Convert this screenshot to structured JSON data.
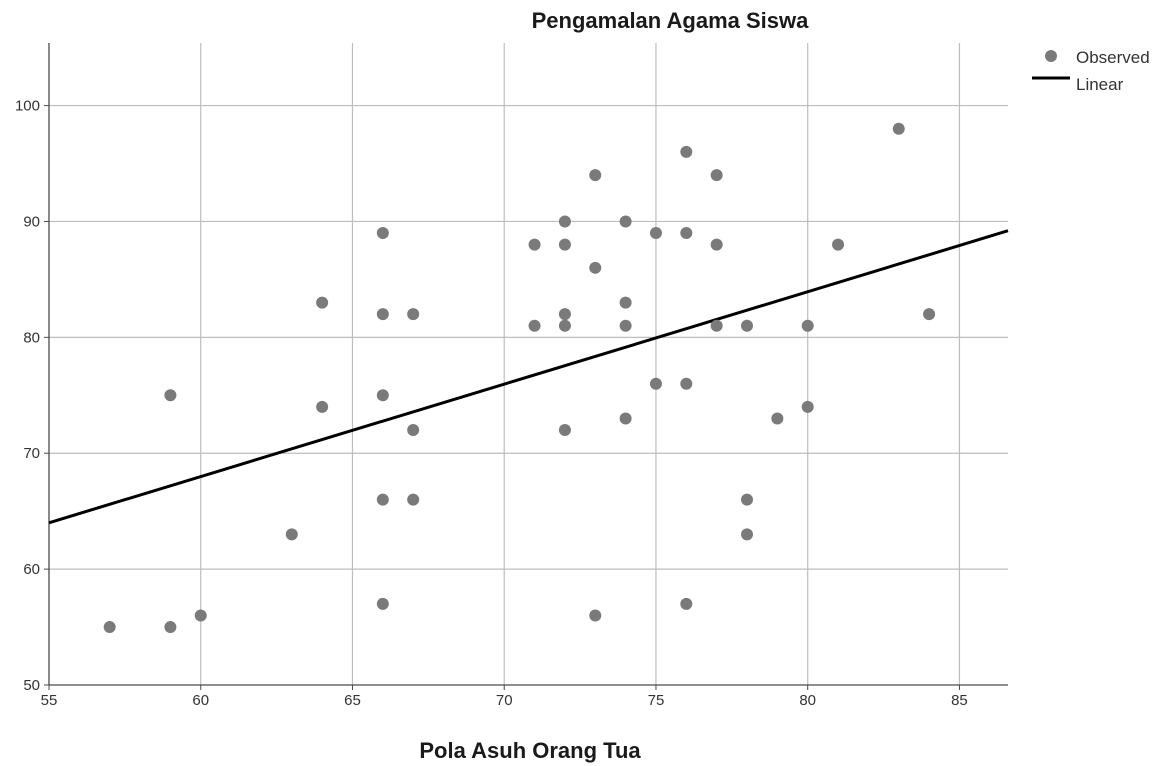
{
  "chart_data": {
    "type": "scatter",
    "title": "Pengamalan Agama Siswa",
    "xlabel": "Pola Asuh Orang Tua",
    "ylabel": "",
    "xlim": [
      55,
      86.6
    ],
    "ylim": [
      50,
      105.4
    ],
    "x_ticks": [
      55,
      60,
      65,
      70,
      75,
      80,
      85
    ],
    "y_ticks": [
      50,
      60,
      70,
      80,
      90,
      100
    ],
    "grid": true,
    "legend_position": "top-right",
    "colors": {
      "observed": "#7a7a7a",
      "linear": "#000000",
      "grid": "#bdbdbd",
      "axis": "#4a4a4a"
    },
    "series": [
      {
        "name": "Observed",
        "kind": "scatter",
        "points": [
          [
            57,
            55
          ],
          [
            59,
            55
          ],
          [
            59,
            75
          ],
          [
            60,
            56
          ],
          [
            63,
            63
          ],
          [
            64,
            83
          ],
          [
            64,
            74
          ],
          [
            66,
            89
          ],
          [
            66,
            82
          ],
          [
            66,
            75
          ],
          [
            66,
            66
          ],
          [
            66,
            57
          ],
          [
            67,
            82
          ],
          [
            67,
            72
          ],
          [
            67,
            66
          ],
          [
            71,
            88
          ],
          [
            71,
            81
          ],
          [
            72,
            90
          ],
          [
            72,
            88
          ],
          [
            72,
            82
          ],
          [
            72,
            81
          ],
          [
            72,
            72
          ],
          [
            73,
            94
          ],
          [
            73,
            86
          ],
          [
            73,
            56
          ],
          [
            74,
            90
          ],
          [
            74,
            83
          ],
          [
            74,
            81
          ],
          [
            74,
            73
          ],
          [
            75,
            89
          ],
          [
            75,
            76
          ],
          [
            76,
            96
          ],
          [
            76,
            89
          ],
          [
            76,
            76
          ],
          [
            76,
            57
          ],
          [
            77,
            94
          ],
          [
            77,
            88
          ],
          [
            77,
            81
          ],
          [
            78,
            81
          ],
          [
            78,
            66
          ],
          [
            78,
            63
          ],
          [
            79,
            73
          ],
          [
            80,
            81
          ],
          [
            80,
            74
          ],
          [
            81,
            88
          ],
          [
            83,
            98
          ],
          [
            84,
            82
          ]
        ]
      },
      {
        "name": "Linear",
        "kind": "line",
        "points": [
          [
            55,
            64
          ],
          [
            86.6,
            89.2
          ]
        ]
      }
    ]
  }
}
